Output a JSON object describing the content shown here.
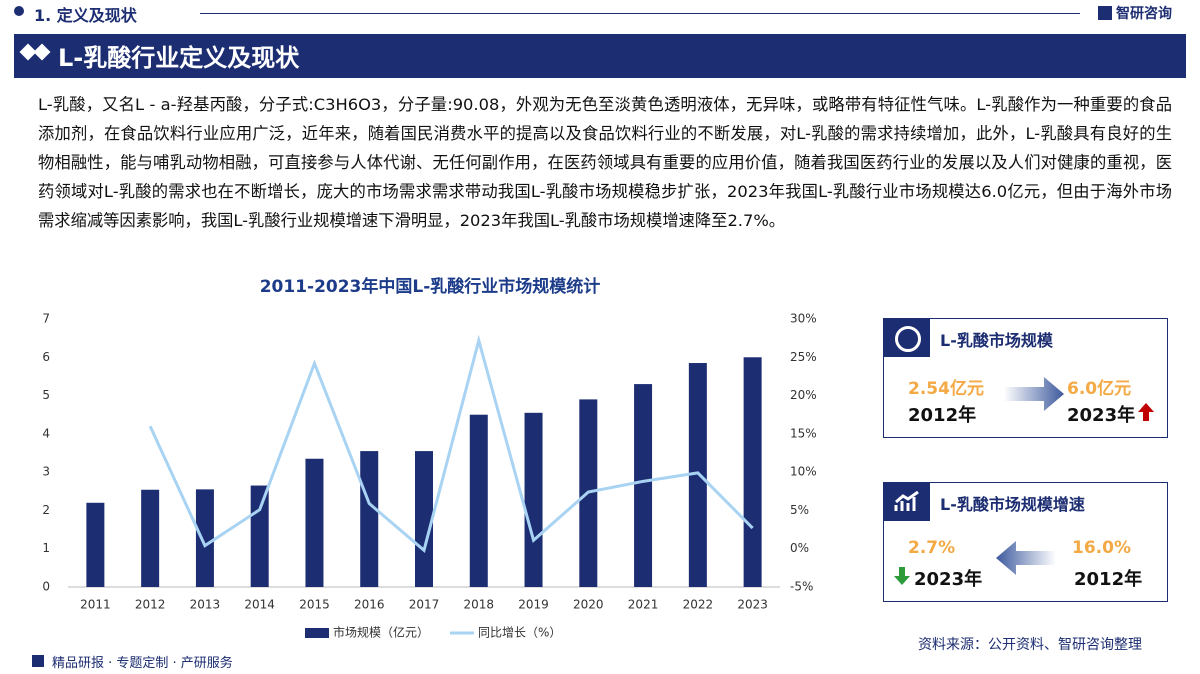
{
  "header": {
    "section": "1. 定义及现状",
    "brand": "智研咨询",
    "title": "L-乳酸行业定义及现状"
  },
  "paragraph": "L-乳酸，又名L - a-羟基丙酸，分子式:C3H6O3，分子量:90.08，外观为无色至淡黄色透明液体，无异味，或略带有特征性气味。L-乳酸作为一种重要的食品添加剂，在食品饮料行业应用广泛，近年来，随着国民消费水平的提高以及食品饮料行业的不断发展，对L-乳酸的需求持续增加，此外，L-乳酸具有良好的生物相融性，能与哺乳动物相融，可直接参与人体代谢、无任何副作用，在医药领域具有重要的应用价值，随着我国医药行业的发展以及人们对健康的重视，医药领域对L-乳酸的需求也在不断增长，庞大的市场需求需求带动我国L-乳酸市场规模稳步扩张，2023年我国L-乳酸行业市场规模达6.0亿元，但由于海外市场需求缩减等因素影响，我国L-乳酸行业规模增速下滑明显，2023年我国L-乳酸市场规模增速降至2.7%。",
  "chart_data": {
    "type": "bar",
    "title": "2011-2023年中国L-乳酸行业市场规模统计",
    "categories": [
      "2011",
      "2012",
      "2013",
      "2014",
      "2015",
      "2016",
      "2017",
      "2018",
      "2019",
      "2020",
      "2021",
      "2022",
      "2023"
    ],
    "series": [
      {
        "name": "市场规模（亿元）",
        "type": "bar",
        "color": "#1c2d72",
        "values": [
          2.2,
          2.54,
          2.55,
          2.65,
          3.35,
          3.55,
          3.55,
          4.5,
          4.55,
          4.9,
          5.3,
          5.85,
          6.0
        ]
      },
      {
        "name": "同比增长（%）",
        "type": "line",
        "axis": "y2",
        "color": "#a9d3f3",
        "values": [
          null,
          16.0,
          0.4,
          5.1,
          24.2,
          5.9,
          -0.2,
          27.2,
          1.1,
          7.4,
          8.8,
          9.9,
          2.7
        ]
      }
    ],
    "ylim": [
      0,
      7
    ],
    "yticks": [
      0,
      1,
      2,
      3,
      4,
      5,
      6,
      7
    ],
    "y2lim": [
      -5,
      30
    ],
    "y2ticks": [
      {
        "value": -5,
        "label": "-5%"
      },
      {
        "value": 0,
        "label": "0%"
      },
      {
        "value": 5,
        "label": "5%"
      },
      {
        "value": 10,
        "label": "10%"
      },
      {
        "value": 15,
        "label": "15%"
      },
      {
        "value": 20,
        "label": "20%"
      },
      {
        "value": 25,
        "label": "25%"
      },
      {
        "value": 30,
        "label": "30%"
      }
    ]
  },
  "cards": [
    {
      "title": "L-乳酸市场规模",
      "left_value": "2.54亿元",
      "left_year": "2012年",
      "right_value": "6.0亿元",
      "right_year": "2023年"
    },
    {
      "title": "L-乳酸市场规模增速",
      "left_value": "2.7%",
      "left_year": "2023年",
      "right_value": "16.0%",
      "right_year": "2012年"
    }
  ],
  "footer": {
    "source": "资料来源：公开资料、智研咨询整理",
    "tagline": "精品研报 · 专题定制 · 产研服务"
  }
}
